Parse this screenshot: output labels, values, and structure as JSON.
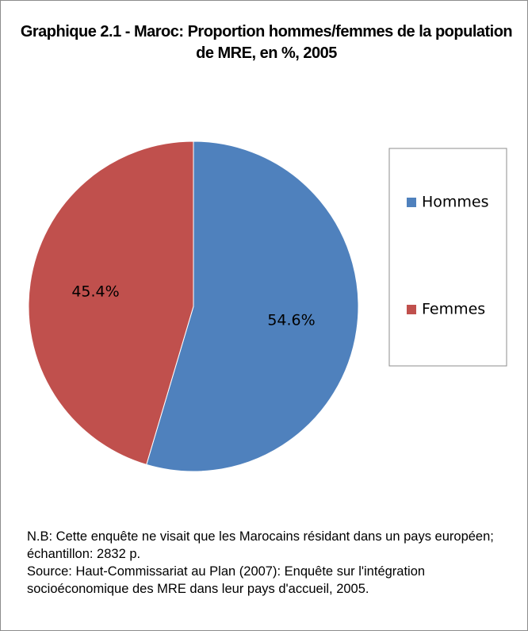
{
  "chart_data": {
    "type": "pie",
    "title": "Graphique 2.1 - Maroc: Proportion hommes/femmes de la population de MRE, en %, 2005",
    "categories": [
      "Hommes",
      "Femmes"
    ],
    "values": [
      54.6,
      45.4
    ],
    "value_labels": [
      "54.6%",
      "45.4%"
    ],
    "colors": [
      "#4f81bd",
      "#c0504d"
    ],
    "legend": "right",
    "notes": [
      "N.B: Cette enquête ne visait que les Marocains résidant dans un pays européen; échantillon: 2832 p.",
      "Source: Haut-Commissariat au Plan (2007): Enquête sur l'intégration socioéconomique des MRE dans leur pays d'accueil, 2005."
    ]
  }
}
